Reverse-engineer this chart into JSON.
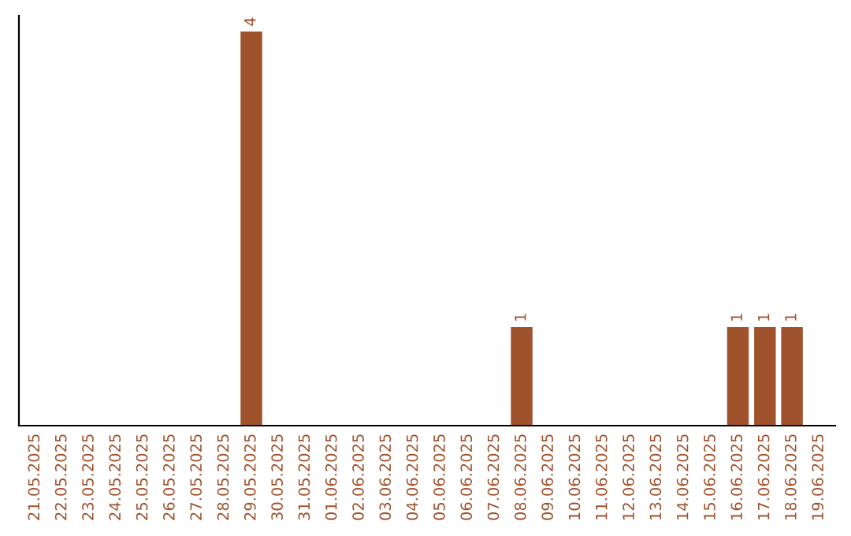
{
  "chart_data": {
    "type": "bar",
    "categories": [
      "21.05.2025",
      "22.05.2025",
      "23.05.2025",
      "24.05.2025",
      "25.05.2025",
      "26.05.2025",
      "27.05.2025",
      "28.05.2025",
      "29.05.2025",
      "30.05.2025",
      "31.05.2025",
      "01.06.2025",
      "02.06.2025",
      "03.06.2025",
      "04.06.2025",
      "05.06.2025",
      "06.06.2025",
      "07.06.2025",
      "08.06.2025",
      "09.06.2025",
      "10.06.2025",
      "11.06.2025",
      "12.06.2025",
      "13.06.2025",
      "14.06.2025",
      "15.06.2025",
      "16.06.2025",
      "17.06.2025",
      "18.06.2025",
      "19.06.2025"
    ],
    "values": [
      0,
      0,
      0,
      0,
      0,
      0,
      0,
      0,
      4,
      0,
      0,
      0,
      0,
      0,
      0,
      0,
      0,
      0,
      1,
      0,
      0,
      0,
      0,
      0,
      0,
      0,
      1,
      1,
      1,
      0
    ],
    "color": "#a0522d",
    "value_labels": [
      null,
      null,
      null,
      null,
      null,
      null,
      null,
      null,
      "4",
      null,
      null,
      null,
      null,
      null,
      null,
      null,
      null,
      null,
      "1",
      null,
      null,
      null,
      null,
      null,
      null,
      null,
      "1",
      "1",
      "1",
      null
    ],
    "tick_labels": "x",
    "grid": false,
    "legend": false
  }
}
